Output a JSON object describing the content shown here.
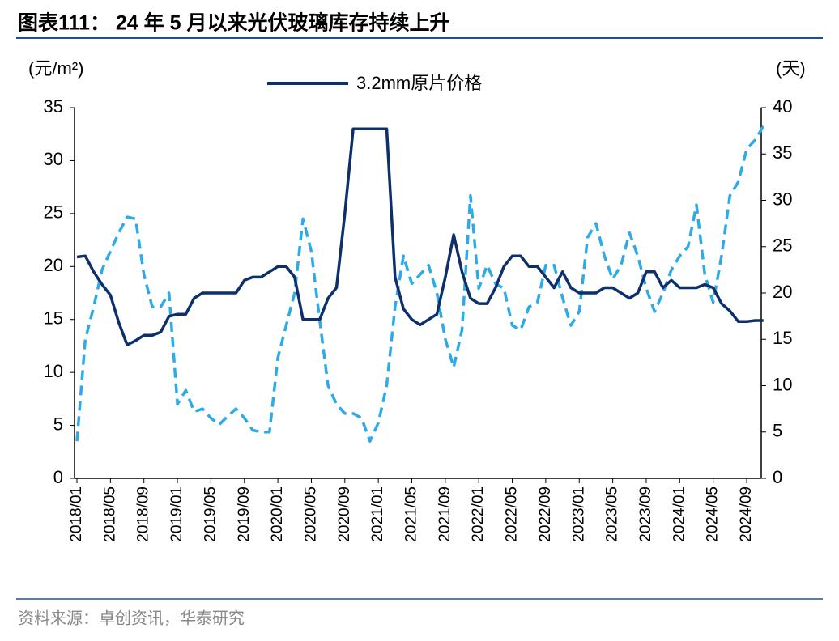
{
  "chart_data": {
    "type": "line",
    "title": "图表111： 24 年 5 月以来光伏玻璃库存持续上升",
    "y_label": "(元/m²)",
    "y2_label": "(天)",
    "source": "资料来源：卓创资讯，华泰研究",
    "categories": [
      "2018/01",
      null,
      null,
      null,
      "2018/05",
      null,
      null,
      null,
      "2018/09",
      null,
      null,
      null,
      "2019/01",
      null,
      null,
      null,
      "2019/05",
      null,
      null,
      null,
      "2019/09",
      null,
      null,
      null,
      "2020/01",
      null,
      null,
      null,
      "2020/05",
      null,
      null,
      null,
      "2020/09",
      null,
      null,
      null,
      "2021/01",
      null,
      null,
      null,
      "2021/05",
      null,
      null,
      null,
      "2021/09",
      null,
      null,
      null,
      "2022/01",
      null,
      null,
      null,
      "2022/05",
      null,
      null,
      null,
      "2022/09",
      null,
      null,
      null,
      "2023/01",
      null,
      null,
      null,
      "2023/05",
      null,
      null,
      null,
      "2023/09",
      null,
      null,
      null,
      "2024/01",
      null,
      null,
      null,
      "2024/05",
      null,
      null,
      null,
      "2024/09",
      null,
      null
    ],
    "series": [
      {
        "name": "3.2mm原片价格",
        "color": "#0d2f6b",
        "dash": false,
        "values": [
          20.9,
          21.0,
          19.5,
          18.3,
          17.3,
          14.7,
          12.6,
          13.0,
          13.5,
          13.5,
          13.8,
          15.3,
          15.5,
          15.5,
          17.0,
          17.5,
          17.5,
          17.5,
          17.5,
          17.5,
          18.7,
          19.0,
          19.0,
          19.5,
          20.0,
          20.0,
          19.0,
          15.0,
          15.0,
          15.0,
          17.0,
          18.0,
          25.0,
          33,
          33,
          33,
          33,
          33,
          19,
          16,
          15,
          14.5,
          15,
          15.5,
          19,
          23,
          19.5,
          17,
          16.5,
          16.5,
          18,
          20,
          21,
          21,
          20,
          20,
          19,
          18,
          19.5,
          18,
          17.5,
          17.5,
          17.5,
          18,
          18,
          17.5,
          17,
          17.5,
          19.5,
          19.5,
          18,
          18.7,
          18,
          18,
          18,
          18.3,
          18,
          16.5,
          15.8,
          14.8,
          14.8,
          14.9,
          14.9
        ]
      },
      {
        "color": "#2eaae6",
        "dash": true,
        "axis": "y2",
        "values": [
          4,
          15,
          18.5,
          22.5,
          24.5,
          26.5,
          28.2,
          28,
          22,
          18.5,
          18.5,
          20,
          8,
          9.5,
          7.2,
          7.5,
          6.5,
          5.8,
          6.7,
          7.5,
          6.5,
          5.2,
          5.0,
          5.0,
          13,
          16.5,
          20,
          28,
          24.5,
          17,
          10,
          8,
          7,
          7,
          6.5,
          4,
          6,
          10,
          18.5,
          24,
          21,
          22,
          23,
          20,
          15,
          12,
          16,
          30.5,
          20.5,
          23,
          21,
          20.5,
          16.5,
          16,
          18.5,
          19,
          23,
          23,
          19.5,
          16.5,
          18,
          26,
          27.5,
          24,
          21.5,
          23,
          26.5,
          24,
          20.5,
          18,
          20,
          22.5,
          24,
          25,
          29.5,
          22,
          19,
          24,
          30.5,
          32,
          35.5,
          36.5,
          38
        ]
      }
    ],
    "ylim": [
      0,
      35
    ],
    "yticks": [
      0,
      5,
      10,
      15,
      20,
      25,
      30,
      35
    ],
    "y2lim": [
      0,
      40
    ],
    "y2ticks": [
      0,
      5,
      10,
      15,
      20,
      25,
      30,
      35,
      40
    ]
  }
}
